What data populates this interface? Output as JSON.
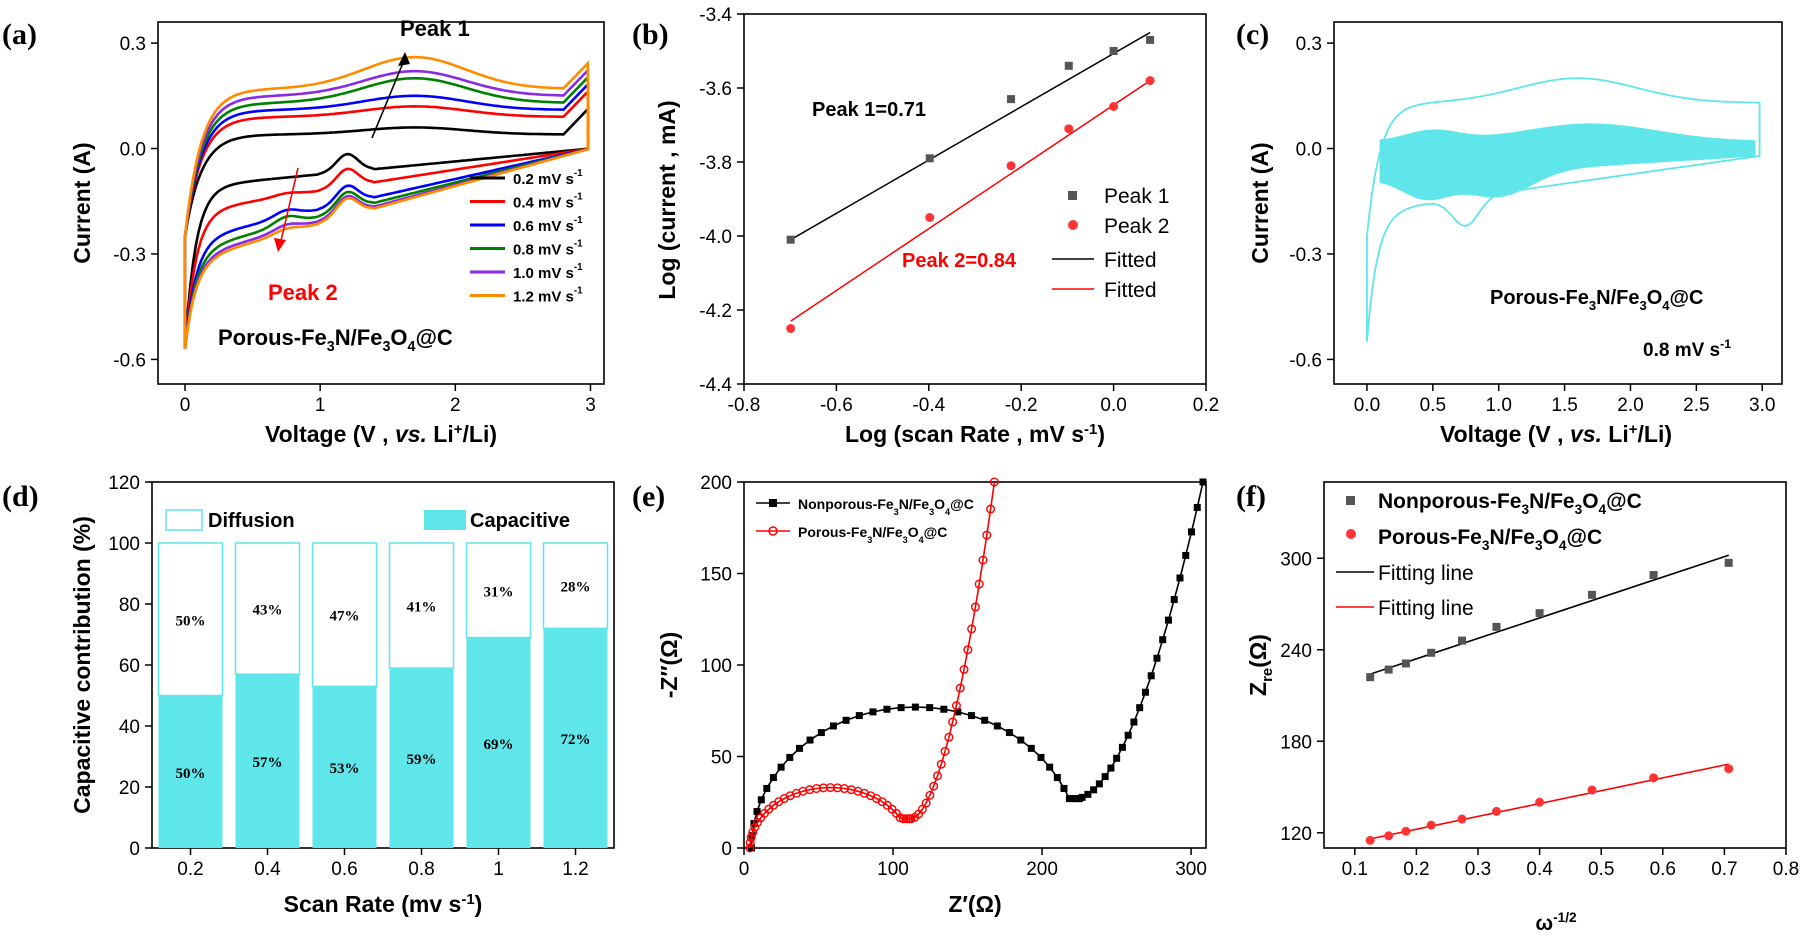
{
  "chart_data": [
    {
      "panel": "(a)",
      "type": "line",
      "xlabel": "Voltage (V , vs. Li+/Li)",
      "ylabel": "Current (A)",
      "xlim": [
        -0.2,
        3.1
      ],
      "ylim": [
        -0.67,
        0.36
      ],
      "xticks": [
        0,
        1,
        2,
        3
      ],
      "yticks": [
        -0.6,
        -0.3,
        0.0,
        0.3
      ],
      "annotations": [
        "Peak 1",
        "Peak 2"
      ],
      "sample_label": "Porous-Fe3N/Fe3O4@C",
      "series": [
        {
          "name": "0.2 mV s-1",
          "color": "#000000",
          "upper_level": 0.04,
          "peak1": 0.06,
          "peak2": -0.09,
          "lower_trough": -0.09
        },
        {
          "name": "0.4 mV s-1",
          "color": "#ff0000",
          "upper_level": 0.09,
          "peak1": 0.12,
          "peak2": -0.14,
          "lower_trough": -0.16
        },
        {
          "name": "0.6 mV s-1",
          "color": "#0000ff",
          "upper_level": 0.11,
          "peak1": 0.15,
          "peak2": -0.19,
          "lower_trough": -0.24
        },
        {
          "name": "0.8 mV s-1",
          "color": "#008000",
          "upper_level": 0.13,
          "peak1": 0.2,
          "peak2": -0.21,
          "lower_trough": -0.27
        },
        {
          "name": "1.0 mV s-1",
          "color": "#8a2be2",
          "upper_level": 0.15,
          "peak1": 0.22,
          "peak2": -0.25,
          "lower_trough": -0.29
        },
        {
          "name": "1.2 mV s-1",
          "color": "#ff8c00",
          "upper_level": 0.17,
          "peak1": 0.26,
          "peak2": -0.27,
          "lower_trough": -0.3
        }
      ]
    },
    {
      "panel": "(b)",
      "type": "scatter",
      "xlabel": "Log (scan Rate , mV s-1)",
      "ylabel": "Log (current , mA)",
      "xlim": [
        -0.8,
        0.2
      ],
      "ylim": [
        -4.4,
        -3.4
      ],
      "xticks": [
        -0.8,
        -0.6,
        -0.4,
        -0.2,
        0.0,
        0.2
      ],
      "yticks": [
        -4.4,
        -4.2,
        -4.0,
        -3.8,
        -3.6,
        -3.4
      ],
      "legend": [
        "Peak 1",
        "Peak 2",
        "Fitted",
        "Fitted"
      ],
      "annotations": [
        "Peak 1=0.71",
        "Peak 2=0.84"
      ],
      "series": [
        {
          "name": "Peak 1",
          "color": "#555555",
          "x": [
            -0.699,
            -0.398,
            -0.222,
            -0.097,
            0.0,
            0.079
          ],
          "y": [
            -4.01,
            -3.79,
            -3.63,
            -3.54,
            -3.5,
            -3.47
          ],
          "fit": {
            "slope": 0.71,
            "x": [
              -0.699,
              0.079
            ],
            "y": [
              -4.01,
              -3.45
            ]
          }
        },
        {
          "name": "Peak 2",
          "color": "#ff3333",
          "x": [
            -0.699,
            -0.398,
            -0.222,
            -0.097,
            0.0,
            0.079
          ],
          "y": [
            -4.25,
            -3.95,
            -3.81,
            -3.71,
            -3.65,
            -3.58
          ],
          "fit": {
            "slope": 0.84,
            "x": [
              -0.699,
              0.079
            ],
            "y": [
              -4.23,
              -3.58
            ]
          }
        }
      ]
    },
    {
      "panel": "(c)",
      "type": "line",
      "xlabel": "Voltage (V , vs. Li+/Li)",
      "ylabel": "Current (A)",
      "xlim": [
        -0.25,
        3.15
      ],
      "ylim": [
        -0.67,
        0.36
      ],
      "xticks": [
        0.0,
        0.5,
        1.0,
        1.5,
        2.0,
        2.5,
        3.0
      ],
      "yticks": [
        -0.6,
        -0.3,
        0.0,
        0.3
      ],
      "sample_label": "Porous-Fe3N/Fe3O4@C",
      "rate_label": "0.8 mV s-1",
      "color": "#5fe6ea"
    },
    {
      "panel": "(d)",
      "type": "bar",
      "xlabel": "Scan Rate (mv s-1)",
      "ylabel": "Capacitive contribution (%)",
      "ylim": [
        0,
        120
      ],
      "yticks": [
        0,
        20,
        40,
        60,
        80,
        100,
        120
      ],
      "categories": [
        "0.2",
        "0.4",
        "0.6",
        "0.8",
        "1",
        "1.2"
      ],
      "legend": [
        "Diffusion",
        "Capacitive"
      ],
      "series": [
        {
          "name": "Capacitive",
          "color": "#5fe6ea",
          "values": [
            50,
            57,
            53,
            59,
            69,
            72
          ],
          "labels": [
            "50%",
            "57%",
            "53%",
            "59%",
            "69%",
            "72%"
          ]
        },
        {
          "name": "Diffusion",
          "color": "#ffffff",
          "values": [
            50,
            43,
            47,
            41,
            31,
            28
          ],
          "labels": [
            "50%",
            "43%",
            "47%",
            "41%",
            "31%",
            "28%"
          ]
        }
      ]
    },
    {
      "panel": "(e)",
      "type": "scatter",
      "xlabel": "Z′(Ω)",
      "ylabel": "-Z″(Ω)",
      "xlim": [
        0,
        310
      ],
      "ylim": [
        0,
        200
      ],
      "xticks": [
        0,
        100,
        200,
        300
      ],
      "yticks": [
        0,
        50,
        100,
        150,
        200
      ],
      "legend": [
        "Nonporous-Fe3N/Fe3O4@C",
        "Porous-Fe3N/Fe3O4@C"
      ],
      "series": [
        {
          "name": "Nonporous-Fe3N/Fe3O4@C",
          "color": "#000000",
          "arc_start": 5,
          "arc_end": 225,
          "arc_top": 77,
          "valley": [
            223,
            27
          ],
          "tail_end": [
            308,
            200
          ]
        },
        {
          "name": "Porous-Fe3N/Fe3O4@C",
          "color": "#ff0000",
          "arc_start": 4,
          "arc_end": 112,
          "arc_top": 33,
          "valley": [
            112,
            16
          ],
          "tail_end": [
            168,
            200
          ]
        }
      ]
    },
    {
      "panel": "(f)",
      "type": "scatter",
      "xlabel": "ω-1/2",
      "ylabel": "Zre(Ω)",
      "xlim": [
        0.05,
        0.8
      ],
      "ylim": [
        110,
        350
      ],
      "xticks": [
        0.1,
        0.2,
        0.3,
        0.4,
        0.5,
        0.6,
        0.7,
        0.8
      ],
      "yticks": [
        120,
        180,
        240,
        300
      ],
      "legend": [
        "Nonporous-Fe3N/Fe3O4@C",
        "Porous-Fe3N/Fe3O4@C",
        "Fitting line",
        "Fitting line"
      ],
      "series": [
        {
          "name": "Nonporous-Fe3N/Fe3O4@C",
          "color": "#555555",
          "x": [
            0.125,
            0.155,
            0.183,
            0.224,
            0.274,
            0.33,
            0.4,
            0.485,
            0.585,
            0.707
          ],
          "y": [
            222,
            227,
            231,
            238,
            246,
            255,
            264,
            276,
            289,
            297
          ],
          "fit": {
            "x": [
              0.125,
              0.707
            ],
            "y": [
              224,
              302
            ]
          }
        },
        {
          "name": "Porous-Fe3N/Fe3O4@C",
          "color": "#ff3333",
          "x": [
            0.125,
            0.155,
            0.183,
            0.224,
            0.274,
            0.33,
            0.4,
            0.485,
            0.585,
            0.707
          ],
          "y": [
            115,
            118,
            121,
            125,
            129,
            134,
            140,
            148,
            156,
            162
          ],
          "fit": {
            "x": [
              0.125,
              0.707
            ],
            "y": [
              116,
              165
            ]
          }
        }
      ]
    }
  ]
}
